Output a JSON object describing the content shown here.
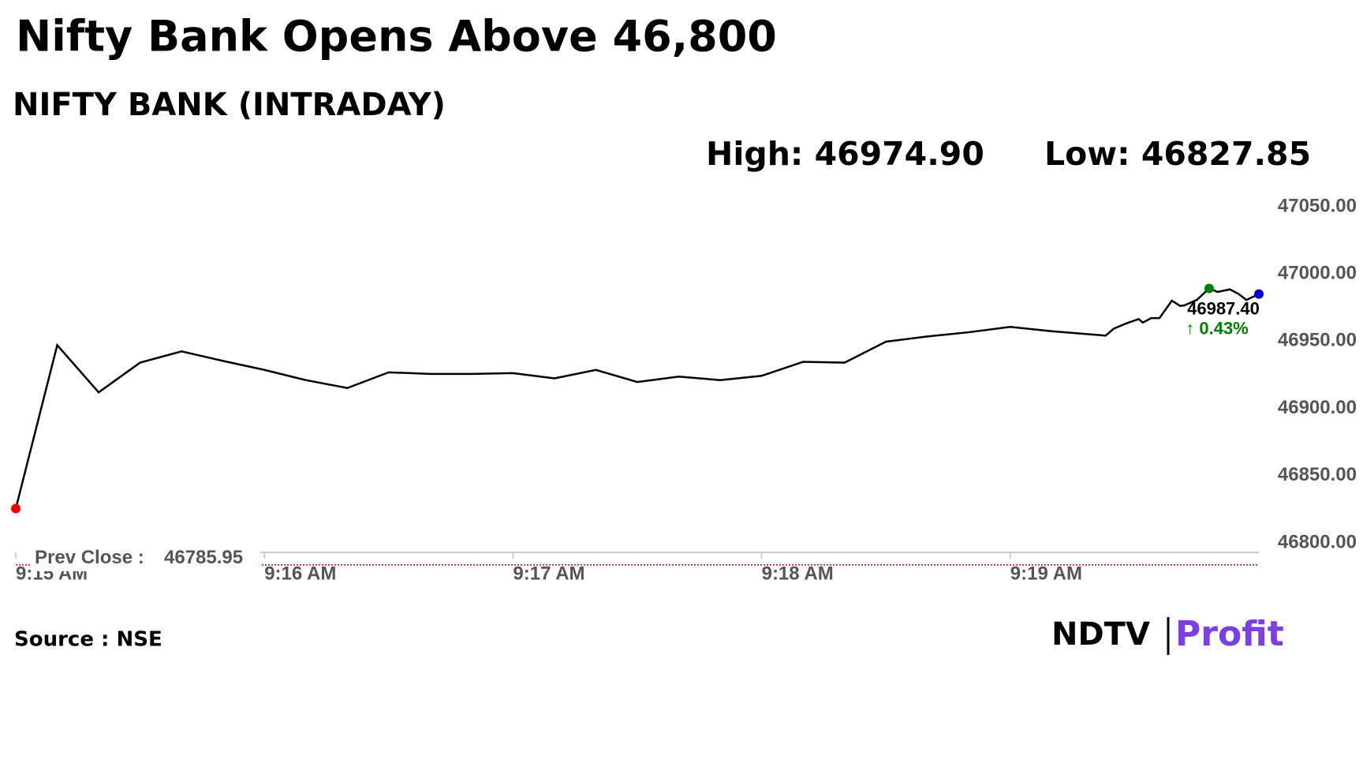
{
  "chart_data": {
    "type": "line",
    "title": "Nifty Bank Opens Above 46,800",
    "subtitle": "NIFTY BANK (INTRADAY)",
    "high_text": "High: 46974.90",
    "low_text": "Low: 46827.85",
    "x": [
      0,
      10,
      20,
      30,
      40,
      50,
      60,
      70,
      80,
      90,
      100,
      110,
      120,
      130,
      140,
      150,
      160,
      170,
      180,
      190,
      200,
      210,
      220,
      230,
      240,
      250,
      263,
      265,
      268,
      271,
      272,
      274,
      276,
      279,
      281,
      282,
      285,
      288,
      290,
      293,
      295,
      297,
      300
    ],
    "series": [
      {
        "name": "NIFTY BANK",
        "color": "#000000",
        "values": [
          46827.85,
          46949.4,
          46914.3,
          46936.4,
          46944.8,
          46937.7,
          46931,
          46923.4,
          46917.5,
          46929.2,
          46928,
          46928,
          46928.6,
          46924.7,
          46931,
          46922,
          46926,
          46923.4,
          46926.6,
          46937,
          46936.4,
          46952,
          46955.9,
          46959,
          46963,
          46959.8,
          46956.5,
          46961.7,
          46965.6,
          46968.8,
          46966.2,
          46969.5,
          46969.5,
          46982.5,
          46978.6,
          46979,
          46983,
          46991.6,
          46989,
          46990.9,
          46987.7,
          46983,
          46987.4
        ]
      }
    ],
    "xlim": [
      0,
      300
    ],
    "xticks": [
      {
        "value": 0,
        "label": "9:15 AM"
      },
      {
        "value": 60,
        "label": "9:16 AM"
      },
      {
        "value": 120,
        "label": "9:17 AM"
      },
      {
        "value": 180,
        "label": "9:18 AM"
      },
      {
        "value": 240,
        "label": "9:19 AM"
      }
    ],
    "ylim": [
      46780,
      47060
    ],
    "yticks": [
      {
        "value": 46800,
        "label": "46800.00"
      },
      {
        "value": 46850,
        "label": "46850.00"
      },
      {
        "value": 46900,
        "label": "46900.00"
      },
      {
        "value": 46950,
        "label": "46950.00"
      },
      {
        "value": 47000,
        "label": "47000.00"
      },
      {
        "value": 47050,
        "label": "47050.00"
      }
    ],
    "prev_close_label": "Prev Close :",
    "prev_close": 46785.95,
    "prev_close_color": "#d00000",
    "last_label": "46987.40",
    "change_label": "↑ 0.43%",
    "change_color": "#008000",
    "start_color": "#ff0000",
    "peak_color": "#008000",
    "end_color": "#0000cc",
    "source": "Source : NSE",
    "logo": [
      "NDTV",
      "Profit"
    ]
  }
}
